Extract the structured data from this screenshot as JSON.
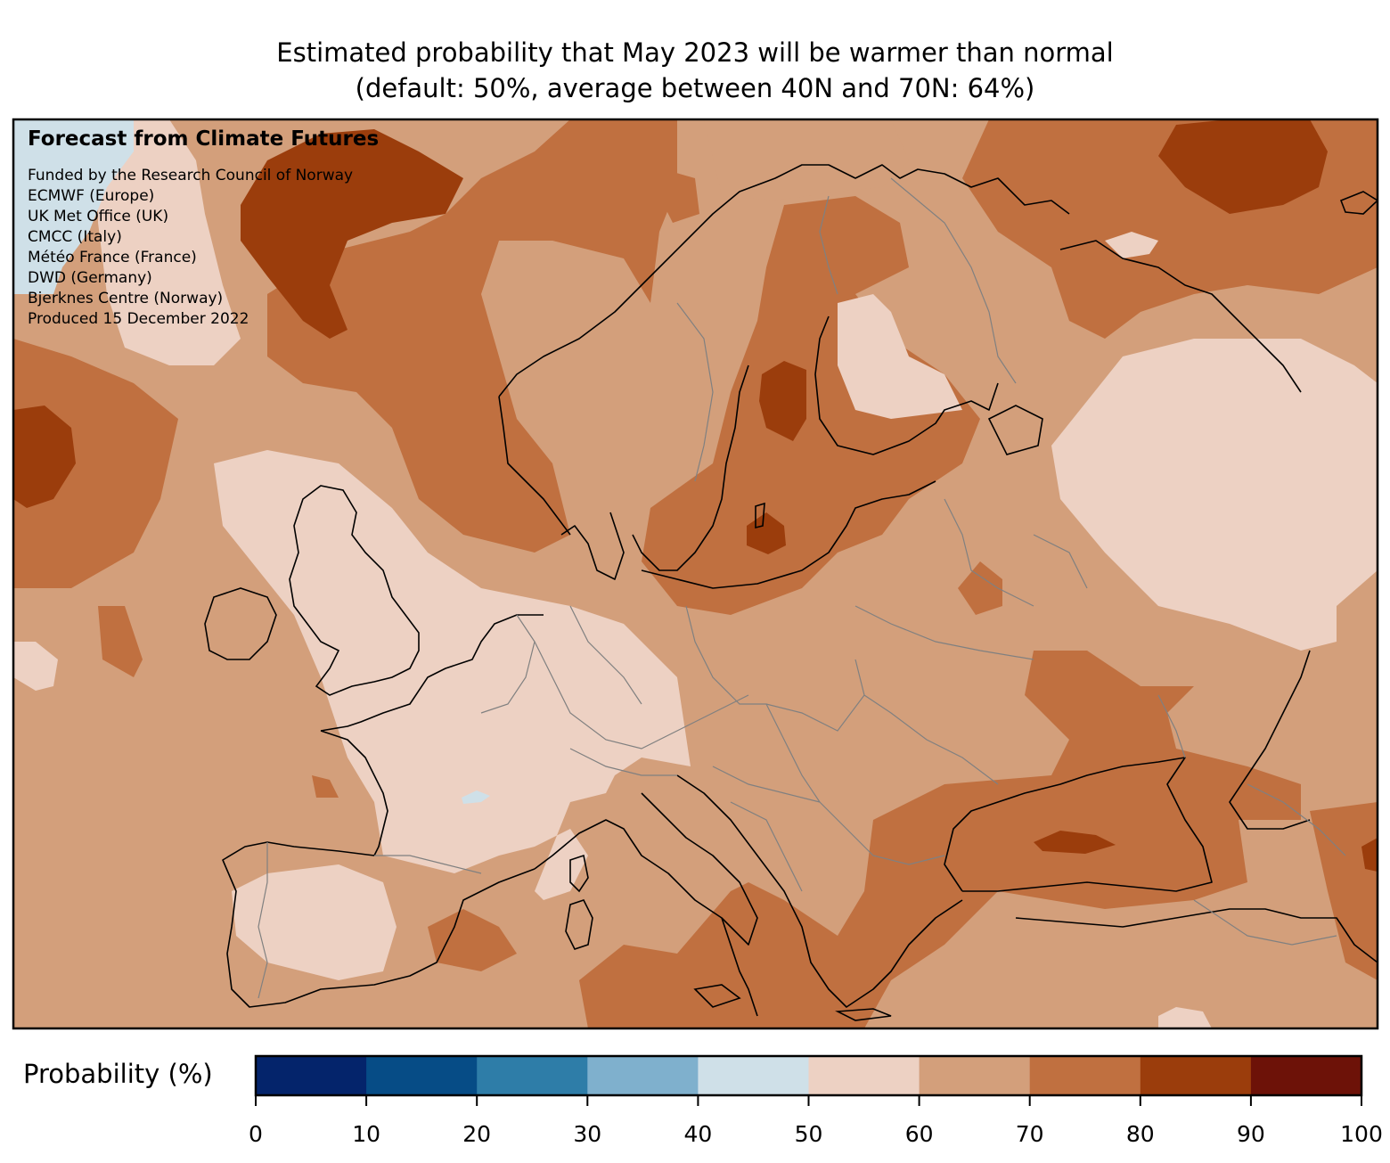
{
  "title": {
    "line1": "Estimated probability that May 2023 will be warmer than normal",
    "line2": "(default: 50%, average between 40N and 70N: 64%)"
  },
  "overlay": {
    "heading": "Forecast from Climate Futures",
    "lines": [
      "Funded by the Research Council of Norway",
      "ECMWF (Europe)",
      "UK Met Office (UK)",
      "CMCC (Italy)",
      "Météo France (France)",
      "DWD (Germany)",
      "Bjerknes Centre (Norway)",
      "Produced 15 December 2022"
    ]
  },
  "colorbar": {
    "label": "Probability (%)",
    "ticks": [
      "0",
      "10",
      "20",
      "30",
      "40",
      "50",
      "60",
      "70",
      "80",
      "90",
      "100"
    ],
    "bins": [
      {
        "range": [
          0,
          10
        ],
        "color": "#04246b"
      },
      {
        "range": [
          10,
          20
        ],
        "color": "#064c86"
      },
      {
        "range": [
          20,
          30
        ],
        "color": "#2e7da8"
      },
      {
        "range": [
          30,
          40
        ],
        "color": "#7fb0cd"
      },
      {
        "range": [
          40,
          50
        ],
        "color": "#cfe0e8"
      },
      {
        "range": [
          50,
          60
        ],
        "color": "#edd1c3"
      },
      {
        "range": [
          60,
          70
        ],
        "color": "#d39f7b"
      },
      {
        "range": [
          70,
          80
        ],
        "color": "#c07040"
      },
      {
        "range": [
          80,
          90
        ],
        "color": "#9b3d0c"
      },
      {
        "range": [
          90,
          100
        ],
        "color": "#6d1208"
      }
    ]
  },
  "colors": {
    "coastline": "#000000",
    "borders": "#808080"
  }
}
